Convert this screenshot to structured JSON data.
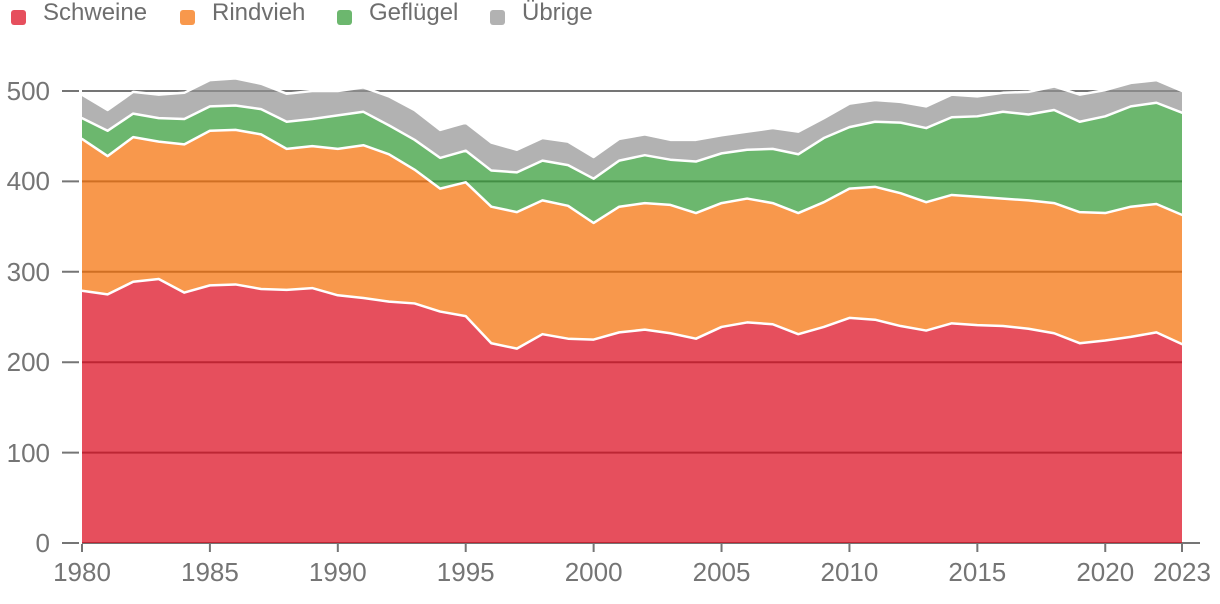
{
  "legend": {
    "items": [
      {
        "label": "Schweine",
        "color": "#DC0418"
      },
      {
        "label": "Rindvieh",
        "color": "#F56C00"
      },
      {
        "label": "Geflügel",
        "color": "#2D9831"
      },
      {
        "label": "Übrige",
        "color": "#929292"
      }
    ]
  },
  "colors": {
    "grid": "#757575",
    "axis_label": "#757575",
    "background": "#ffffff",
    "series_separator": "#ffffff"
  },
  "chart_data": {
    "type": "area",
    "stacked": true,
    "title": "",
    "xlabel": "",
    "ylabel": "",
    "xlim": [
      1980,
      2023
    ],
    "ylim": [
      0,
      500
    ],
    "grid": true,
    "legend_position": "top",
    "fill_opacity": 0.7,
    "x": [
      1980,
      1981,
      1982,
      1983,
      1984,
      1985,
      1986,
      1987,
      1988,
      1989,
      1990,
      1991,
      1992,
      1993,
      1994,
      1995,
      1996,
      1997,
      1998,
      1999,
      2000,
      2001,
      2002,
      2003,
      2004,
      2005,
      2006,
      2007,
      2008,
      2009,
      2010,
      2011,
      2012,
      2013,
      2014,
      2015,
      2016,
      2017,
      2018,
      2019,
      2020,
      2021,
      2022,
      2023
    ],
    "x_ticks": [
      1980,
      1985,
      1990,
      1995,
      2000,
      2005,
      2010,
      2015,
      2020,
      2023
    ],
    "y_ticks": [
      0,
      100,
      200,
      300,
      400,
      500
    ],
    "series": [
      {
        "name": "Schweine",
        "color": "#DC0418",
        "values": [
          279,
          275,
          289,
          292,
          277,
          285,
          286,
          281,
          280,
          282,
          274,
          271,
          267,
          265,
          256,
          251,
          221,
          215,
          231,
          226,
          225,
          233,
          236,
          232,
          226,
          239,
          244,
          242,
          231,
          239,
          249,
          247,
          240,
          235,
          243,
          241,
          240,
          237,
          232,
          221,
          224,
          228,
          233,
          220
        ]
      },
      {
        "name": "Rindvieh",
        "color": "#F56C00",
        "values": [
          168,
          153,
          160,
          152,
          164,
          171,
          171,
          171,
          156,
          157,
          162,
          169,
          163,
          148,
          136,
          148,
          151,
          151,
          148,
          147,
          129,
          139,
          140,
          142,
          139,
          137,
          137,
          134,
          134,
          138,
          143,
          147,
          147,
          142,
          142,
          142,
          141,
          142,
          144,
          145,
          141,
          144,
          142,
          143
        ]
      },
      {
        "name": "Geflügel",
        "color": "#2D9831",
        "values": [
          23,
          28,
          26,
          26,
          28,
          27,
          27,
          28,
          30,
          30,
          37,
          37,
          32,
          33,
          34,
          35,
          40,
          44,
          44,
          45,
          49,
          51,
          53,
          50,
          57,
          55,
          54,
          60,
          65,
          71,
          68,
          72,
          78,
          82,
          86,
          89,
          96,
          95,
          103,
          100,
          107,
          111,
          112,
          113
        ]
      },
      {
        "name": "Übrige",
        "color": "#929292",
        "values": [
          26,
          23,
          24,
          26,
          29,
          29,
          30,
          28,
          31,
          31,
          27,
          27,
          32,
          33,
          31,
          31,
          31,
          25,
          25,
          26,
          24,
          24,
          23,
          22,
          24,
          20,
          20,
          23,
          25,
          22,
          26,
          24,
          23,
          24,
          25,
          22,
          21,
          25,
          26,
          30,
          29,
          26,
          25,
          24
        ]
      }
    ]
  }
}
